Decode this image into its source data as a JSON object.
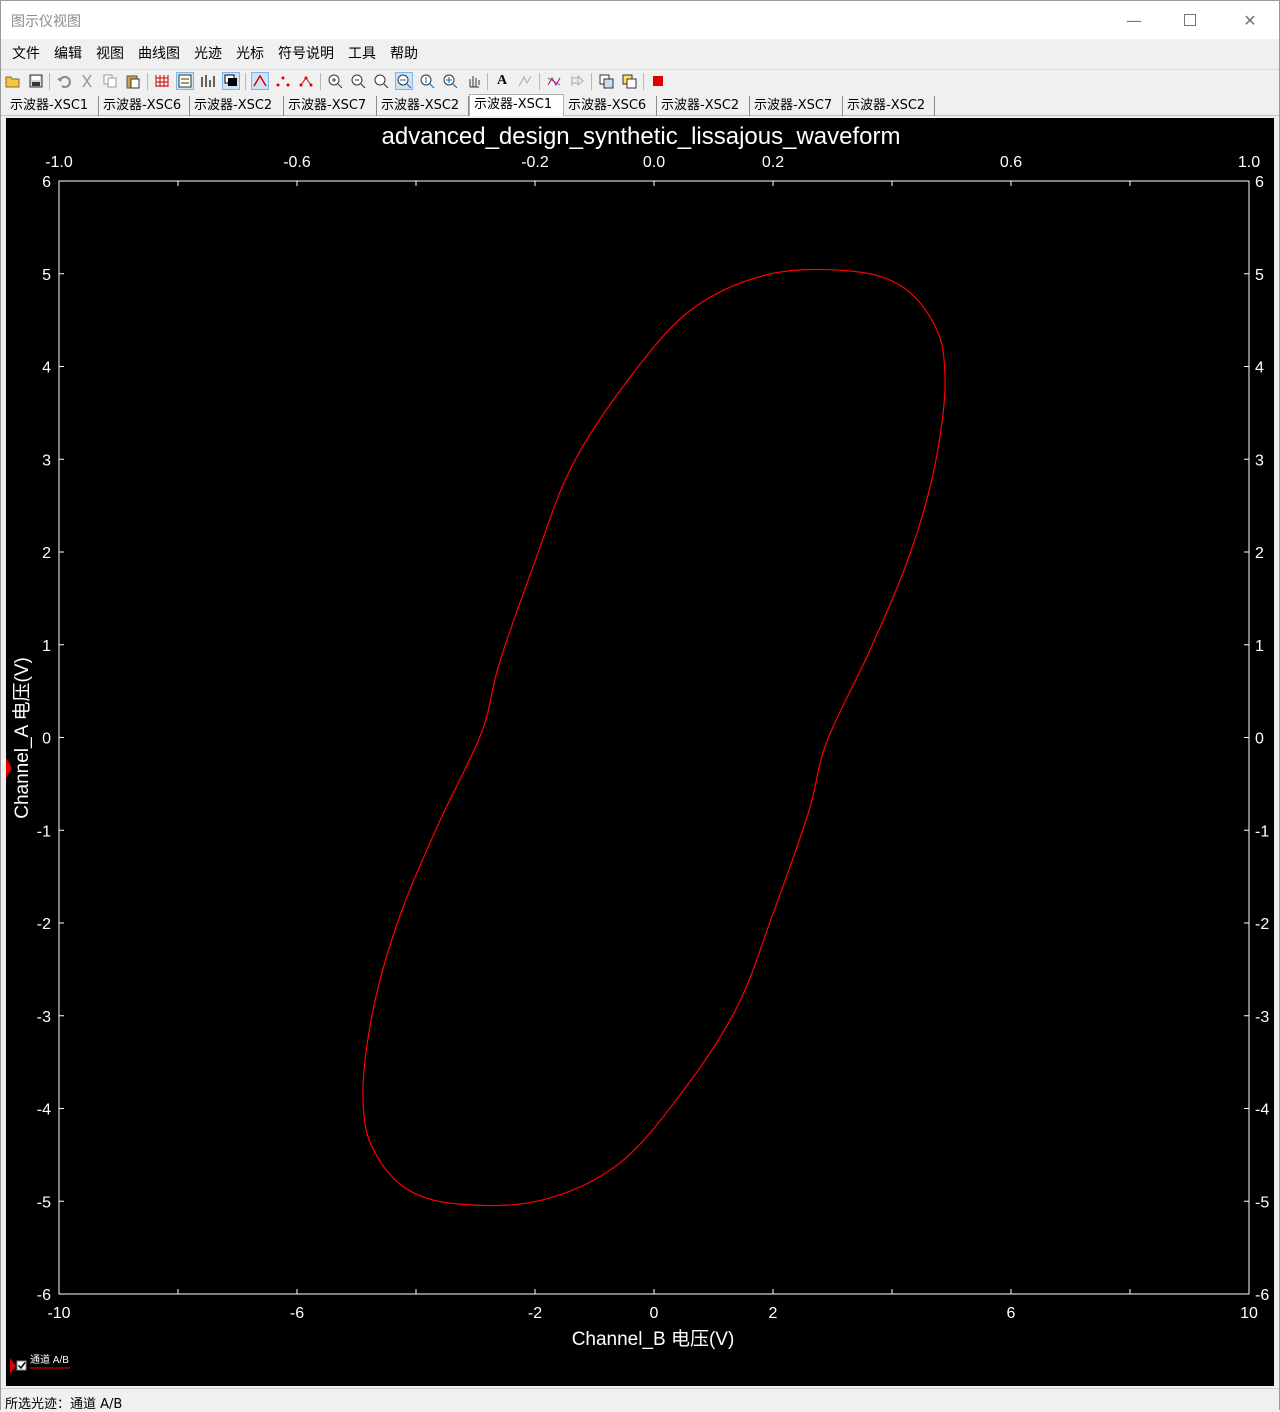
{
  "window": {
    "title": "图示仪视图",
    "min_icon": "minimize-icon",
    "max_icon": "maximize-icon",
    "close_icon": "close-icon"
  },
  "menu": [
    "文件",
    "编辑",
    "视图",
    "曲线图",
    "光迹",
    "光标",
    "符号说明",
    "工具",
    "帮助"
  ],
  "toolbar_icons": [
    "open-icon",
    "save-icon",
    "undo-icon",
    "cut-icon",
    "copy-icon",
    "paste-icon",
    "grid-icon",
    "legend-icon",
    "bar-icon",
    "overlay-icon",
    "line-trace-icon",
    "dot-trace-icon",
    "line-dot-trace-icon",
    "zoom-in-icon",
    "zoom-out-icon",
    "zoom-fit-icon",
    "zoom-x-icon",
    "zoom-y-icon",
    "zoom-xy-icon",
    "pan-icon",
    "text-icon",
    "properties-icon",
    "cursor-icon",
    "export-icon",
    "copy-graph-icon",
    "paste-graph-icon",
    "stop-icon"
  ],
  "tabs": [
    "示波器-XSC1",
    "示波器-XSC6",
    "示波器-XSC2",
    "示波器-XSC7",
    "示波器-XSC2",
    "示波器-XSC1",
    "示波器-XSC6",
    "示波器-XSC2",
    "示波器-XSC7",
    "示波器-XSC2"
  ],
  "selected_tab": 5,
  "legend": {
    "label": "通道 A/B",
    "checked": true
  },
  "status": {
    "text": "所选光迹：通道 A/B"
  },
  "chart_data": {
    "type": "line",
    "title": "advanced_design_synthetic_lissajous_waveform",
    "xlabel": "Channel_B 电压(V)",
    "ylabel": "Channel_A 电压(V)",
    "xlim": [
      -10,
      10
    ],
    "ylim": [
      -6,
      6
    ],
    "top_xlim": [
      -1.0,
      1.0
    ],
    "x_ticks": [
      -10,
      -6,
      -2,
      0,
      2,
      6,
      10
    ],
    "x_tick_labels": [
      "-10",
      "-6",
      "-2",
      "0",
      "2",
      "6",
      "10"
    ],
    "top_x_ticks": [
      -1.0,
      -0.6,
      -0.2,
      0.0,
      0.2,
      0.6,
      1.0
    ],
    "top_x_tick_labels": [
      "-1.0",
      "-0.6",
      "-0.2",
      "0.0",
      "0.2",
      "0.6",
      "1.0"
    ],
    "y_ticks": [
      6,
      5,
      4,
      3,
      2,
      1,
      0,
      -1,
      -2,
      -3,
      -4,
      -5,
      -6
    ],
    "y_tick_labels": [
      "6",
      "5",
      "4",
      "3",
      "2",
      "1",
      "0",
      "-1",
      "-2",
      "-3",
      "-4",
      "-5",
      "-6"
    ],
    "grid": false,
    "background": "#000000",
    "series": [
      {
        "color": "#ff0000",
        "points": [
          [
            3.3,
            5.03
          ],
          [
            4.2,
            4.85
          ],
          [
            4.75,
            4.4
          ],
          [
            4.89,
            3.9
          ],
          [
            4.82,
            3.3
          ],
          [
            4.6,
            2.6
          ],
          [
            4.2,
            1.8
          ],
          [
            3.6,
            0.9
          ],
          [
            2.9,
            -0.05
          ],
          [
            2.6,
            -0.8
          ],
          [
            2.0,
            -1.9
          ],
          [
            1.4,
            -2.9
          ],
          [
            0.5,
            -3.8
          ],
          [
            -0.6,
            -4.6
          ],
          [
            -1.9,
            -4.99
          ],
          [
            -3.3,
            -5.03
          ],
          [
            -4.2,
            -4.85
          ],
          [
            -4.75,
            -4.4
          ],
          [
            -4.89,
            -3.9
          ],
          [
            -4.82,
            -3.3
          ],
          [
            -4.6,
            -2.6
          ],
          [
            -4.2,
            -1.8
          ],
          [
            -3.6,
            -0.9
          ],
          [
            -2.9,
            0.05
          ],
          [
            -2.6,
            0.8
          ],
          [
            -2.0,
            1.9
          ],
          [
            -1.4,
            2.9
          ],
          [
            -0.5,
            3.8
          ],
          [
            0.6,
            4.6
          ],
          [
            1.9,
            4.99
          ],
          [
            3.3,
            5.03
          ]
        ]
      }
    ]
  }
}
